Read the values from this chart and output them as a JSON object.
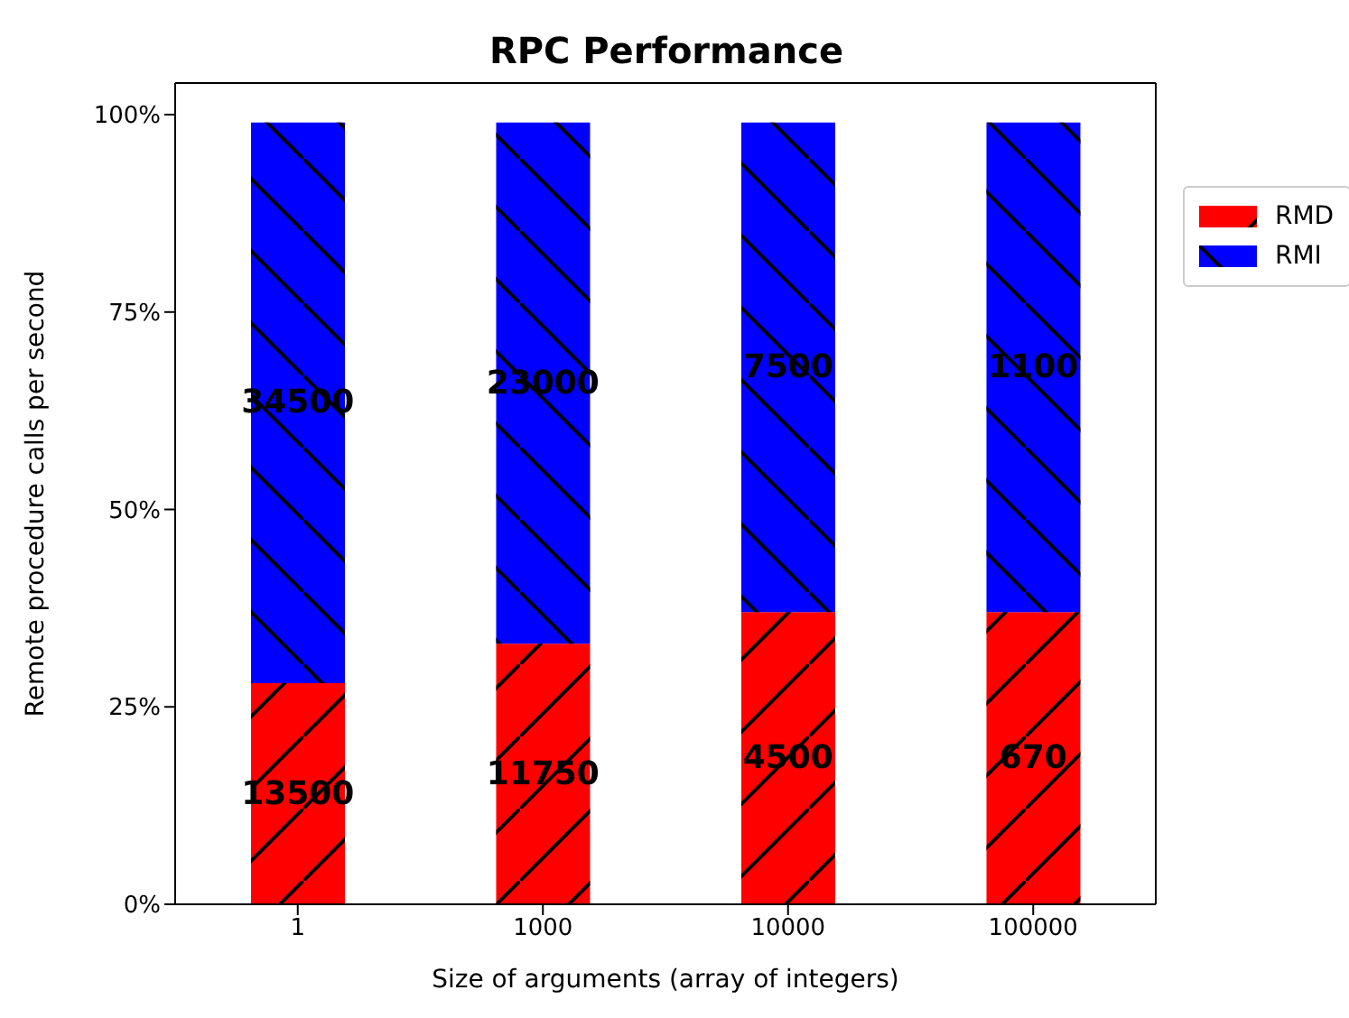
{
  "chart_data": {
    "type": "bar",
    "title": "RPC Performance",
    "xlabel": "Size of arguments (array of integers)",
    "ylabel": "Remote procedure calls per second",
    "categories": [
      "1",
      "1000",
      "10000",
      "100000"
    ],
    "stacked": true,
    "series": [
      {
        "name": "RMD",
        "color": "#ff0000",
        "values": [
          28,
          33,
          37,
          37
        ]
      },
      {
        "name": "RMI",
        "color": "#0000ff",
        "values": [
          71,
          66,
          62,
          62
        ]
      }
    ],
    "annotations": [
      "13500",
      "11750",
      "4500",
      "670",
      "34500",
      "23000",
      "7500",
      "1100"
    ],
    "ylim": [
      0,
      104
    ],
    "yticks": [
      {
        "value": 0,
        "label": "0%"
      },
      {
        "value": 25,
        "label": "25%"
      },
      {
        "value": 50,
        "label": "50%"
      },
      {
        "value": 75,
        "label": "75%"
      },
      {
        "value": 100,
        "label": "100%"
      }
    ],
    "legend": "top right"
  }
}
